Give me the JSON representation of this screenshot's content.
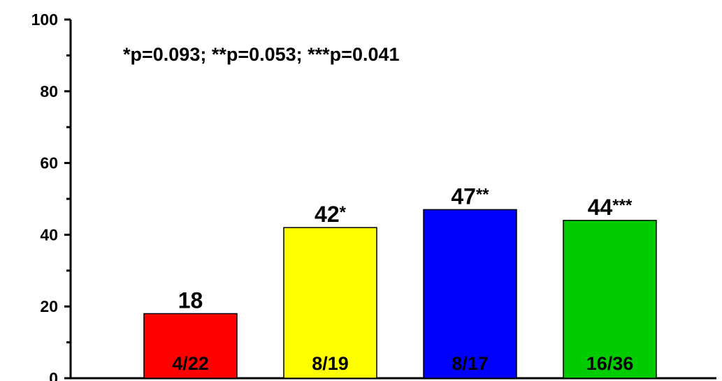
{
  "chart_data": {
    "type": "bar",
    "categories": [
      "",
      "",
      "",
      ""
    ],
    "values": [
      18,
      42,
      47,
      44
    ],
    "value_labels": [
      "18",
      "42*",
      "47**",
      "44***"
    ],
    "value_numbers": [
      "18",
      "42",
      "47",
      "44"
    ],
    "value_stars": [
      "",
      "*",
      "**",
      "***"
    ],
    "inner_labels": [
      "4/22",
      "8/19",
      "8/17",
      "16/36"
    ],
    "colors": [
      "#ff0000",
      "#ffff00",
      "#0000ff",
      "#00cc00"
    ],
    "annotation": "*p=0.093; **p=0.053; ***p=0.041",
    "ylim": [
      0,
      100
    ],
    "ytick_labels": [
      "0",
      "20",
      "40",
      "60",
      "80",
      "100"
    ],
    "ytick_values": [
      0,
      20,
      40,
      60,
      80,
      100
    ],
    "yminor_values": [
      10,
      30,
      50,
      70,
      90
    ],
    "grid": false,
    "xlabel": "",
    "ylabel": "",
    "title": ""
  }
}
